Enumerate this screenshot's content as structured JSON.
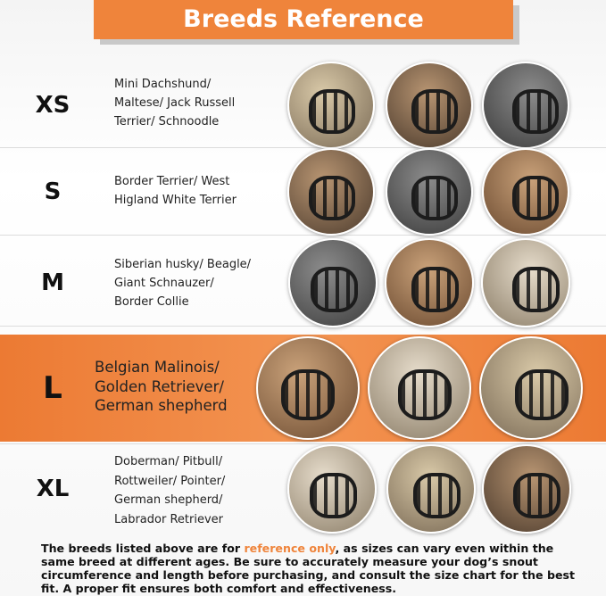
{
  "header": {
    "title": "Breeds Reference"
  },
  "rows": [
    {
      "size": "XS",
      "breeds": [
        "Mini Dachshund/",
        "Maltese/ Jack Russell",
        "Terrier/ Schnoodle"
      ]
    },
    {
      "size": "S",
      "breeds": [
        "Border Terrier/ West",
        "Higland White Terrier"
      ]
    },
    {
      "size": "M",
      "breeds": [
        "Siberian husky/ Beagle/",
        "Giant Schnauzer/",
        "Border Collie"
      ]
    },
    {
      "size": "L",
      "breeds": [
        "Belgian Malinois/",
        "Golden Retriever/",
        "German shepherd"
      ]
    },
    {
      "size": "XL",
      "breeds": [
        "Doberman/ Pitbull/",
        "Rottweiler/ Pointer/",
        "German shepherd/",
        "Labrador Retriever"
      ]
    }
  ],
  "footer": {
    "before": "The breeds listed above are for ",
    "highlight": "reference only",
    "after": ", as sizes can vary even within the same breed at different ages. Be sure to accurately measure your dog’s snout circumference and length before purchasing, and consult the size chart for the best fit. A proper fit ensures both comfort and effectiveness."
  }
}
